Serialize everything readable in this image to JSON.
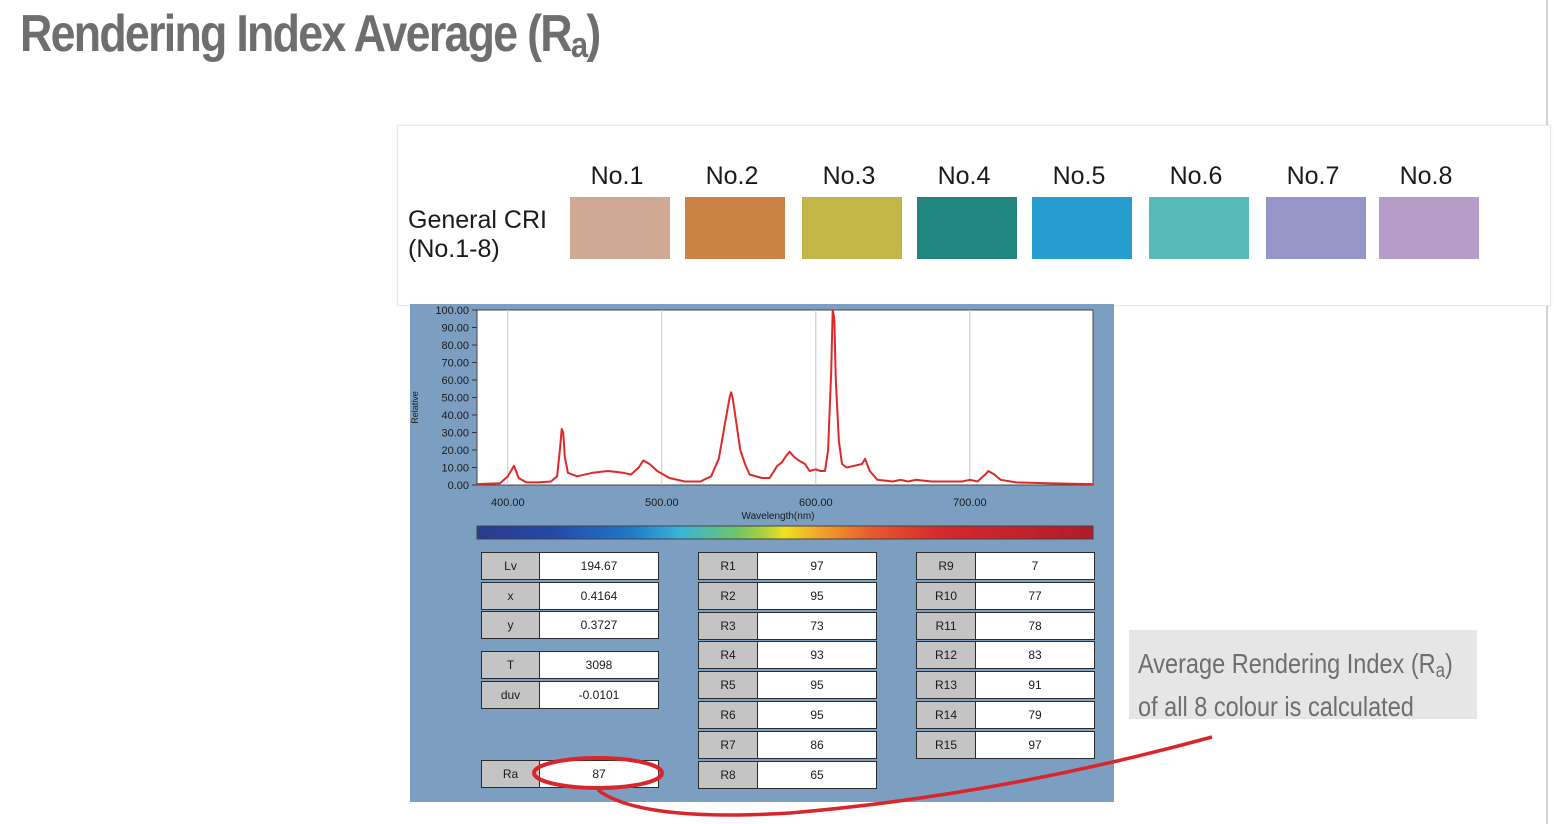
{
  "title": {
    "main": "Rendering Index Average (R",
    "sub": "a",
    "close": ")"
  },
  "cri": {
    "label_line1": "General CRI",
    "label_line2": "(No.1-8)",
    "swatches": [
      {
        "name": "No.1",
        "color": "#d0a995"
      },
      {
        "name": "No.2",
        "color": "#cb8345"
      },
      {
        "name": "No.3",
        "color": "#c2b648"
      },
      {
        "name": "No.4",
        "color": "#218680"
      },
      {
        "name": "No.5",
        "color": "#269ccf"
      },
      {
        "name": "No.6",
        "color": "#57bab8"
      },
      {
        "name": "No.7",
        "color": "#9595c7"
      },
      {
        "name": "No.8",
        "color": "#b59cc9"
      }
    ]
  },
  "chart_data": {
    "type": "line",
    "xlabel": "Wavelength(nm)",
    "ylabel": "Relative",
    "xlim": [
      380,
      780
    ],
    "ylim": [
      0,
      100
    ],
    "x_ticks": [
      "400.00",
      "500.00",
      "600.00",
      "700.00"
    ],
    "y_ticks": [
      "0.00",
      "10.00",
      "20.00",
      "30.00",
      "40.00",
      "50.00",
      "60.00",
      "70.00",
      "80.00",
      "90.00",
      "100.00"
    ],
    "grid": true,
    "series": [
      {
        "color": "#e02828",
        "points": [
          [
            380,
            0.5
          ],
          [
            395,
            1
          ],
          [
            400,
            5
          ],
          [
            404,
            11
          ],
          [
            407,
            4
          ],
          [
            412,
            1.5
          ],
          [
            420,
            1.5
          ],
          [
            428,
            2
          ],
          [
            432,
            5
          ],
          [
            434,
            22
          ],
          [
            435,
            32
          ],
          [
            436,
            30
          ],
          [
            437,
            16
          ],
          [
            439,
            7
          ],
          [
            445,
            5
          ],
          [
            455,
            7
          ],
          [
            465,
            8
          ],
          [
            475,
            7
          ],
          [
            480,
            6
          ],
          [
            485,
            10
          ],
          [
            488,
            14
          ],
          [
            492,
            12
          ],
          [
            497,
            8
          ],
          [
            505,
            4
          ],
          [
            515,
            2
          ],
          [
            525,
            2
          ],
          [
            532,
            5
          ],
          [
            537,
            15
          ],
          [
            541,
            35
          ],
          [
            544,
            50
          ],
          [
            545,
            53
          ],
          [
            546,
            50
          ],
          [
            548,
            38
          ],
          [
            551,
            20
          ],
          [
            554,
            12
          ],
          [
            557,
            6
          ],
          [
            565,
            4
          ],
          [
            570,
            4
          ],
          [
            575,
            11
          ],
          [
            578,
            13
          ],
          [
            581,
            17
          ],
          [
            583,
            19
          ],
          [
            586,
            16
          ],
          [
            589,
            14
          ],
          [
            593,
            12
          ],
          [
            596,
            8
          ],
          [
            600,
            9
          ],
          [
            603,
            8
          ],
          [
            606,
            8
          ],
          [
            608,
            20
          ],
          [
            610,
            65
          ],
          [
            611,
            100
          ],
          [
            612,
            95
          ],
          [
            613,
            60
          ],
          [
            615,
            25
          ],
          [
            617,
            12
          ],
          [
            620,
            10
          ],
          [
            625,
            11
          ],
          [
            630,
            12
          ],
          [
            632,
            15
          ],
          [
            635,
            8
          ],
          [
            640,
            3
          ],
          [
            650,
            2
          ],
          [
            655,
            3
          ],
          [
            660,
            2
          ],
          [
            665,
            3
          ],
          [
            675,
            2
          ],
          [
            685,
            2
          ],
          [
            690,
            2
          ],
          [
            695,
            2
          ],
          [
            700,
            3
          ],
          [
            705,
            2
          ],
          [
            710,
            6
          ],
          [
            712,
            8
          ],
          [
            716,
            6
          ],
          [
            720,
            3
          ],
          [
            730,
            1.5
          ],
          [
            750,
            1
          ],
          [
            780,
            0.5
          ]
        ]
      }
    ]
  },
  "table": {
    "col1": [
      {
        "label": "Lv",
        "value": "194.67"
      },
      {
        "label": "x",
        "value": "0.4164"
      },
      {
        "label": "y",
        "value": "0.3727"
      },
      {
        "label": "T",
        "value": "3098"
      },
      {
        "label": "duv",
        "value": "-0.0101"
      },
      {
        "label": "Ra",
        "value": "87"
      }
    ],
    "col2": [
      {
        "label": "R1",
        "value": "97"
      },
      {
        "label": "R2",
        "value": "95"
      },
      {
        "label": "R3",
        "value": "73"
      },
      {
        "label": "R4",
        "value": "93"
      },
      {
        "label": "R5",
        "value": "95"
      },
      {
        "label": "R6",
        "value": "95"
      },
      {
        "label": "R7",
        "value": "86"
      },
      {
        "label": "R8",
        "value": "65"
      }
    ],
    "col3": [
      {
        "label": "R9",
        "value": "7"
      },
      {
        "label": "R10",
        "value": "77"
      },
      {
        "label": "R11",
        "value": "78"
      },
      {
        "label": "R12",
        "value": "83"
      },
      {
        "label": "R13",
        "value": "91"
      },
      {
        "label": "R14",
        "value": "79"
      },
      {
        "label": "R15",
        "value": "97"
      }
    ]
  },
  "callout": {
    "line1_main": "Average Rendering Index (R",
    "line1_sub": "a",
    "line1_close": ")",
    "line2": "of all 8 colour is calculated"
  },
  "colors": {
    "annotation": "#d9262c",
    "panel_blue": "#7c9fc1"
  }
}
